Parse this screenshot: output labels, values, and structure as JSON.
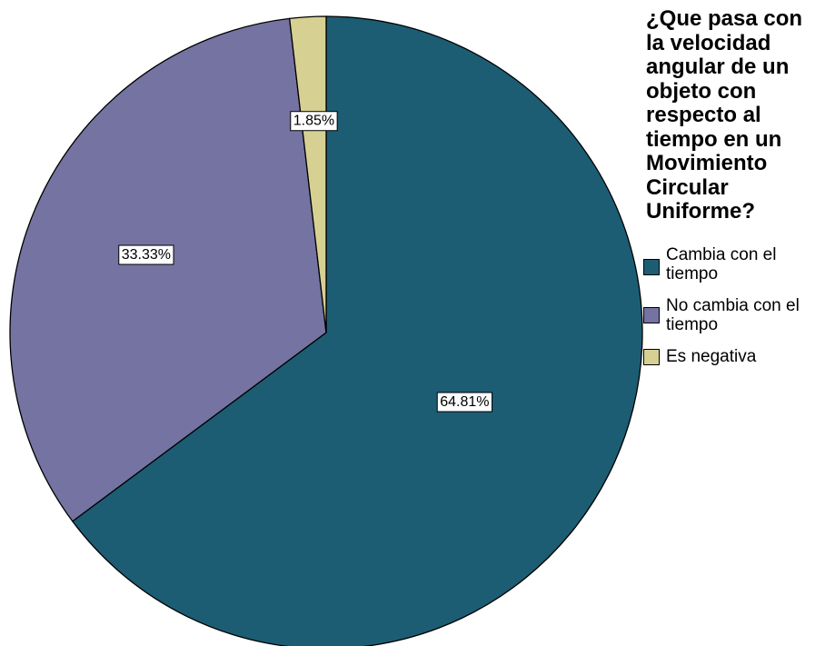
{
  "chart_data": {
    "type": "pie",
    "title": "¿Que pasa con la velocidad angular de un objeto con respecto al tiempo en un Movimiento Circular Uniforme?",
    "title_lines": [
      "¿Que pasa con",
      "la velocidad",
      "angular de un",
      "objeto con",
      "respecto al",
      "tiempo en un",
      "Movimiento",
      "Circular",
      "Uniforme?"
    ],
    "legend_position": "right",
    "slices": [
      {
        "label": "Cambia con el tiempo",
        "label_lines": [
          "Cambia con el",
          "tiempo"
        ],
        "value": 64.81,
        "display": "64.81%",
        "color": "#1c5d74"
      },
      {
        "label": "No cambia con el tiempo",
        "label_lines": [
          "No cambia con el",
          "tiempo"
        ],
        "value": 33.33,
        "display": "33.33%",
        "color": "#7573a2"
      },
      {
        "label": "Es negativa",
        "label_lines": [
          "Es negativa"
        ],
        "value": 1.85,
        "display": "1.85%",
        "color": "#d6d093"
      }
    ]
  }
}
